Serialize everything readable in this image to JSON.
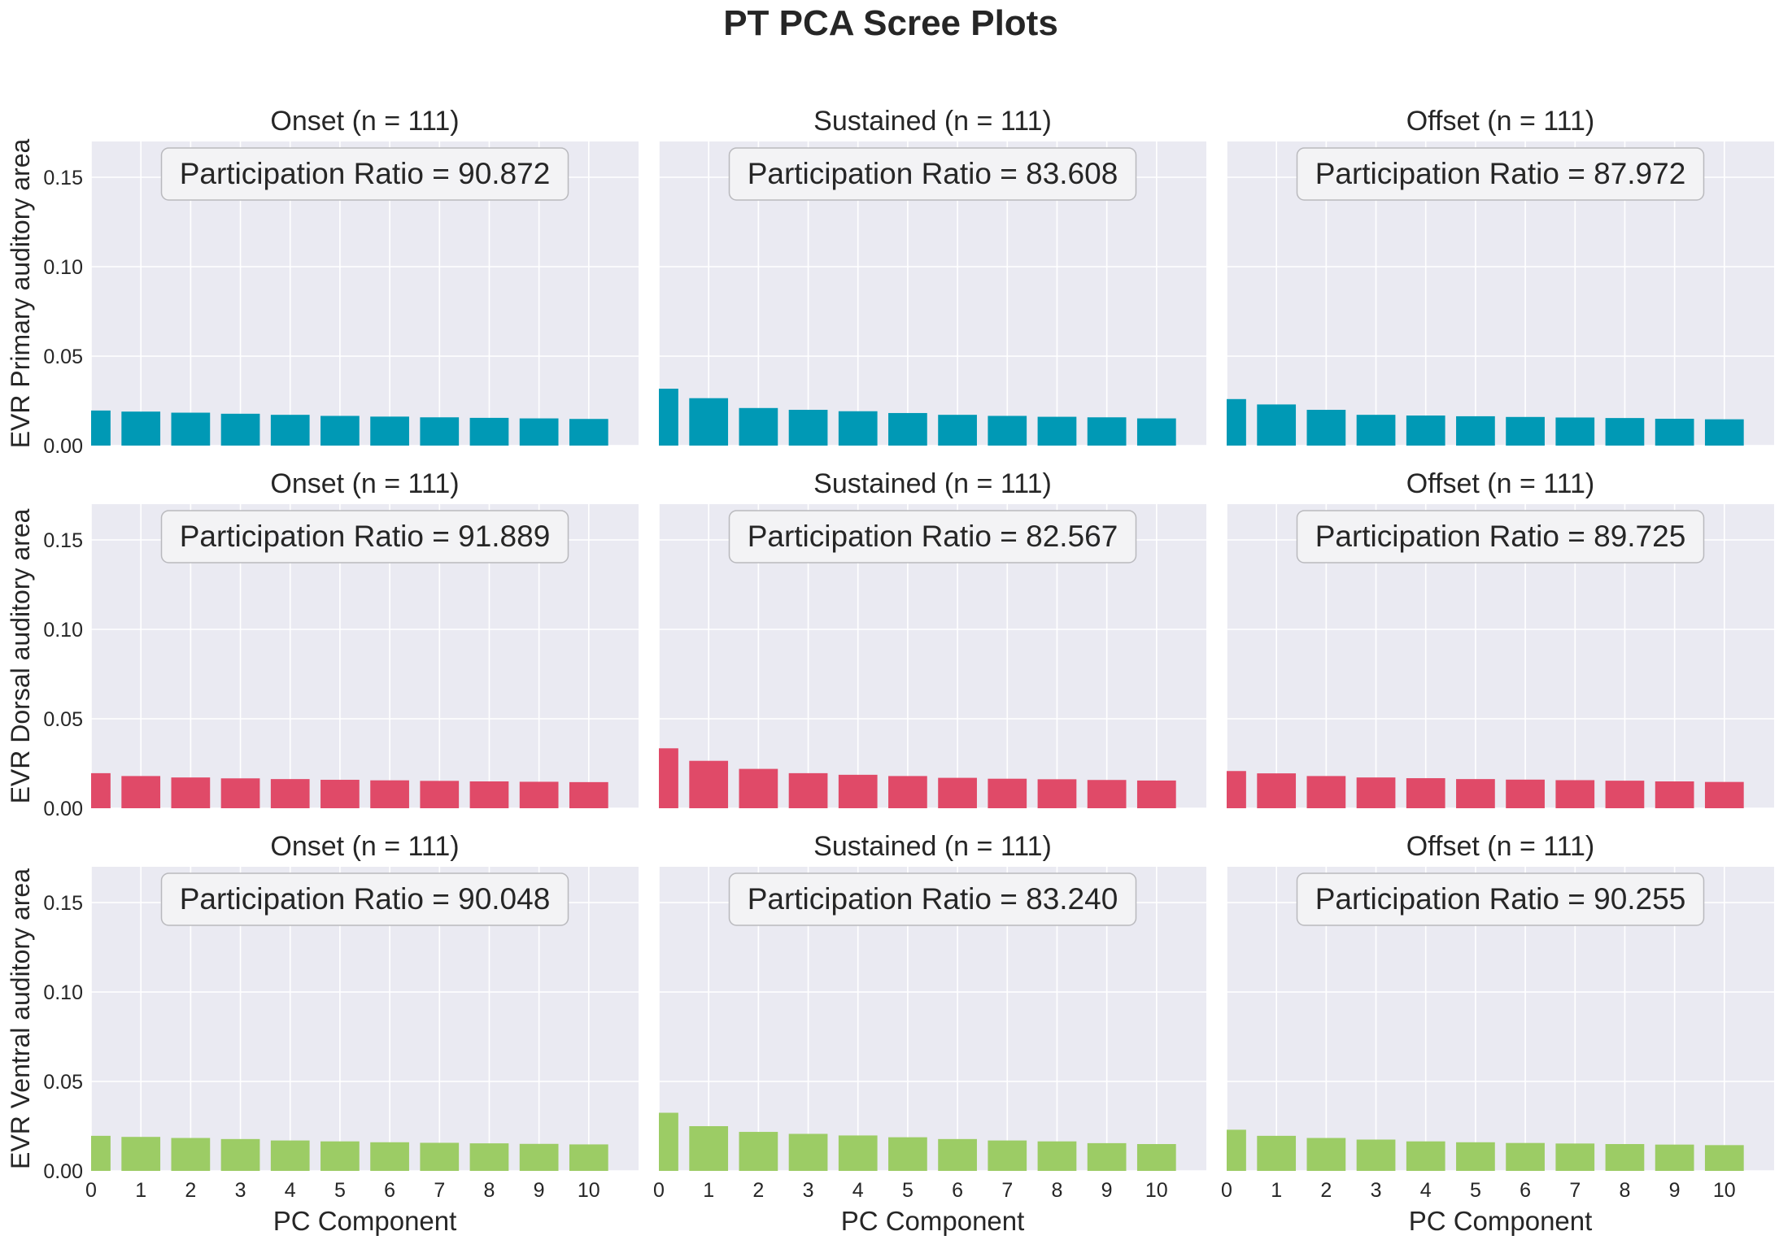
{
  "chart_data": {
    "type": "bar",
    "title": "PT PCA Scree Plots",
    "xlabel": "PC Component",
    "x_ticks": [
      "0",
      "1",
      "2",
      "3",
      "4",
      "5",
      "6",
      "7",
      "8",
      "9",
      "10"
    ],
    "y_ticks": [
      "0.00",
      "0.05",
      "0.10",
      "0.15"
    ],
    "ylim": [
      0,
      0.17
    ],
    "xlim": [
      0,
      11
    ],
    "grid": true,
    "categories": [
      0,
      1,
      2,
      3,
      4,
      5,
      6,
      7,
      8,
      9,
      10
    ],
    "rows": [
      {
        "ylabel": "EVR Primary auditory area",
        "color": "#0099b5",
        "panels": [
          {
            "title": "Onset (n = 111)",
            "annotation": "Participation Ratio = 90.872",
            "values": [
              0.0196,
              0.019,
              0.0184,
              0.0178,
              0.0172,
              0.0166,
              0.0162,
              0.0158,
              0.0155,
              0.0152,
              0.0149
            ]
          },
          {
            "title": "Sustained (n = 111)",
            "annotation": "Participation Ratio = 83.608",
            "values": [
              0.0318,
              0.0265,
              0.021,
              0.02,
              0.0192,
              0.0182,
              0.0172,
              0.0166,
              0.0161,
              0.0158,
              0.0152
            ]
          },
          {
            "title": "Offset (n = 111)",
            "annotation": "Participation Ratio = 87.972",
            "values": [
              0.026,
              0.023,
              0.02,
              0.0172,
              0.0168,
              0.0164,
              0.016,
              0.0157,
              0.0154,
              0.015,
              0.0147
            ]
          }
        ]
      },
      {
        "ylabel": "EVR Dorsal auditory area",
        "color": "#e04a68",
        "panels": [
          {
            "title": "Onset (n = 111)",
            "annotation": "Participation Ratio = 91.889",
            "values": [
              0.0196,
              0.018,
              0.0172,
              0.0167,
              0.0163,
              0.0159,
              0.0156,
              0.0153,
              0.015,
              0.0148,
              0.0146
            ]
          },
          {
            "title": "Sustained (n = 111)",
            "annotation": "Participation Ratio = 82.567",
            "values": [
              0.0335,
              0.0265,
              0.022,
              0.0196,
              0.0187,
              0.018,
              0.017,
              0.0165,
              0.0162,
              0.0158,
              0.0155
            ]
          },
          {
            "title": "Offset (n = 111)",
            "annotation": "Participation Ratio = 89.725",
            "values": [
              0.0208,
              0.0195,
              0.018,
              0.0172,
              0.0168,
              0.0163,
              0.016,
              0.0157,
              0.0154,
              0.015,
              0.0147
            ]
          }
        ]
      },
      {
        "ylabel": "EVR Ventral auditory area",
        "color": "#9ccc65",
        "panels": [
          {
            "title": "Onset (n = 111)",
            "annotation": "Participation Ratio = 90.048",
            "values": [
              0.0196,
              0.019,
              0.0184,
              0.0178,
              0.017,
              0.0165,
              0.016,
              0.0157,
              0.0154,
              0.0151,
              0.0148
            ]
          },
          {
            "title": "Sustained (n = 111)",
            "annotation": "Participation Ratio = 83.240",
            "values": [
              0.0325,
              0.025,
              0.0218,
              0.0207,
              0.0198,
              0.0188,
              0.0178,
              0.017,
              0.0165,
              0.0155,
              0.015
            ]
          },
          {
            "title": "Offset (n = 111)",
            "annotation": "Participation Ratio = 90.255",
            "values": [
              0.023,
              0.0196,
              0.0184,
              0.0175,
              0.0165,
              0.016,
              0.0156,
              0.0153,
              0.015,
              0.0147,
              0.0144
            ]
          }
        ]
      }
    ]
  }
}
